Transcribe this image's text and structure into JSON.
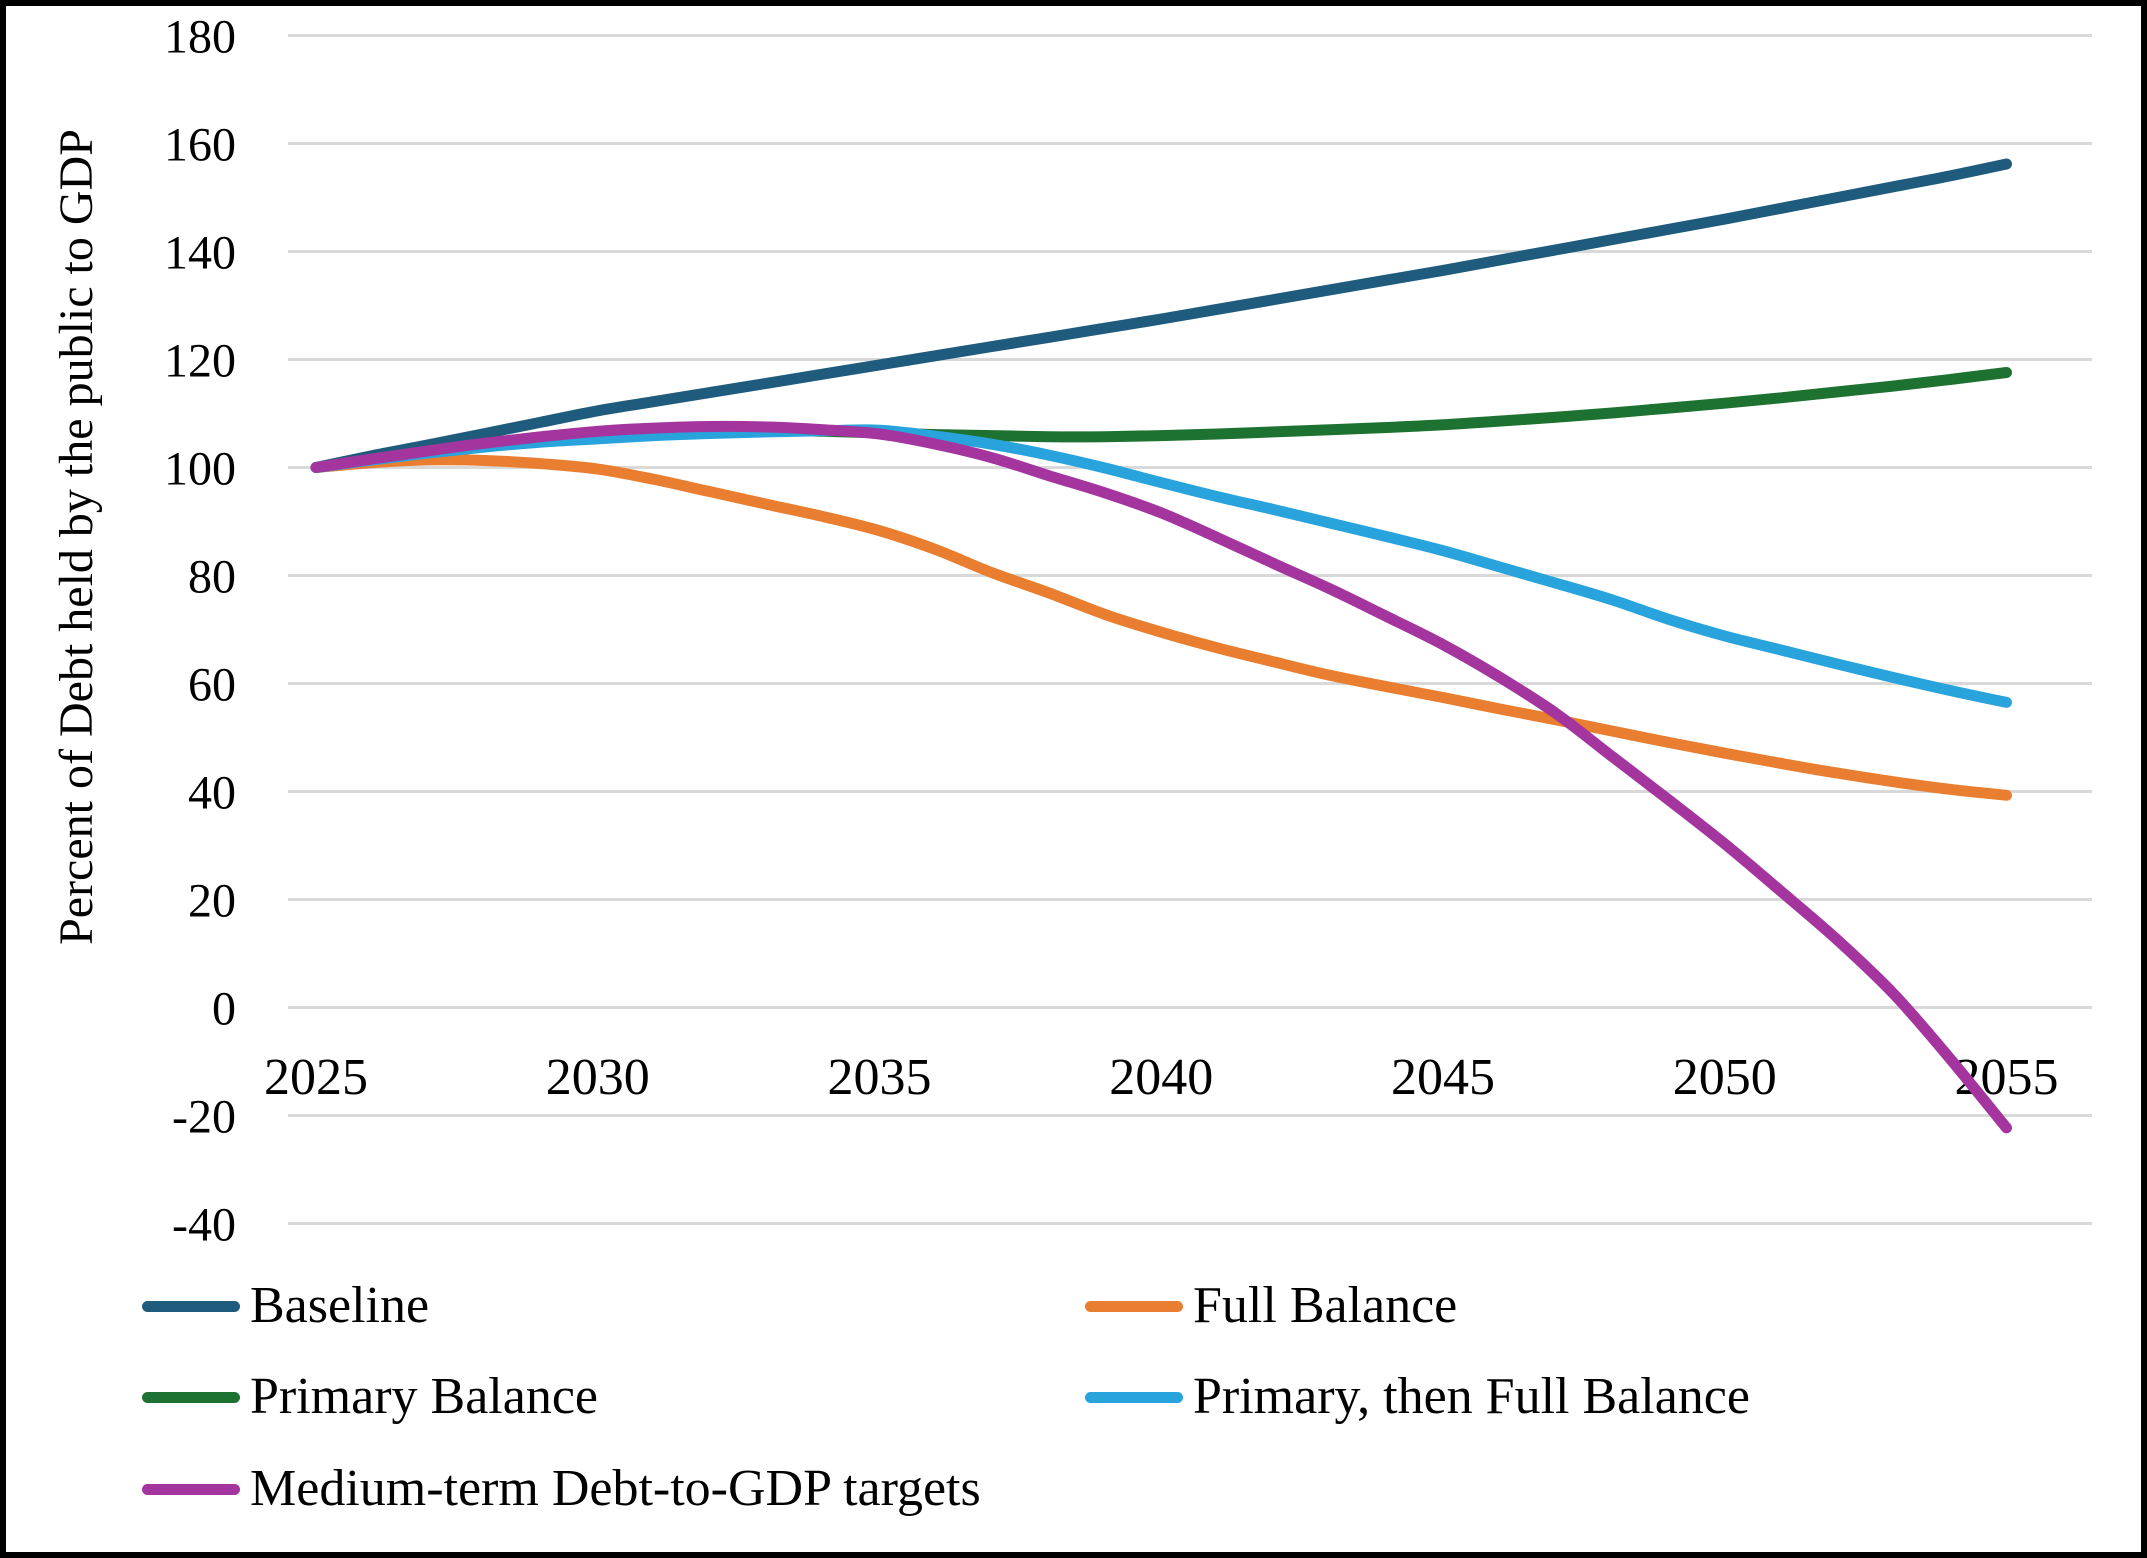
{
  "chart_data": {
    "type": "line",
    "title": "",
    "xlabel": "",
    "ylabel": "Percent of Debt held by the public to GDP",
    "x_ticks": [
      2025,
      2030,
      2035,
      2040,
      2045,
      2050,
      2055
    ],
    "y_ticks": [
      180,
      160,
      140,
      120,
      100,
      80,
      60,
      40,
      20,
      0,
      -20,
      -40
    ],
    "xlim": [
      2025,
      2055
    ],
    "ylim": [
      -40,
      180
    ],
    "grid": "horizontal",
    "gridline_color": "#d9d9d9",
    "legend_position": "bottom",
    "series": [
      {
        "name": "Baseline",
        "color": "#1f5b7c",
        "points": [
          [
            2025,
            100
          ],
          [
            2026,
            102.2
          ],
          [
            2027,
            104.2
          ],
          [
            2028,
            106.3
          ],
          [
            2029,
            108.4
          ],
          [
            2030,
            110.5
          ],
          [
            2031,
            112.2
          ],
          [
            2032,
            113.9
          ],
          [
            2033,
            115.6
          ],
          [
            2034,
            117.3
          ],
          [
            2035,
            119
          ],
          [
            2036,
            120.7
          ],
          [
            2037,
            122.4
          ],
          [
            2038,
            124.1
          ],
          [
            2039,
            125.8
          ],
          [
            2040,
            127.5
          ],
          [
            2041,
            129.3
          ],
          [
            2042,
            131.1
          ],
          [
            2043,
            132.9
          ],
          [
            2044,
            134.7
          ],
          [
            2045,
            136.5
          ],
          [
            2046,
            138.4
          ],
          [
            2047,
            140.3
          ],
          [
            2048,
            142.2
          ],
          [
            2049,
            144.1
          ],
          [
            2050,
            146
          ],
          [
            2051,
            148
          ],
          [
            2052,
            150
          ],
          [
            2053,
            152
          ],
          [
            2054,
            154
          ],
          [
            2055,
            156.2
          ]
        ]
      },
      {
        "name": "Full Balance",
        "color": "#e97e30",
        "points": [
          [
            2025,
            100
          ],
          [
            2026,
            100.9
          ],
          [
            2027,
            101.4
          ],
          [
            2028,
            101.3
          ],
          [
            2029,
            100.7
          ],
          [
            2030,
            99.7
          ],
          [
            2031,
            97.8
          ],
          [
            2032,
            95.5
          ],
          [
            2033,
            93.2
          ],
          [
            2034,
            90.9
          ],
          [
            2035,
            88.3
          ],
          [
            2036,
            84.8
          ],
          [
            2037,
            80.5
          ],
          [
            2038,
            76.8
          ],
          [
            2039,
            72.8
          ],
          [
            2040,
            69.5
          ],
          [
            2041,
            66.6
          ],
          [
            2042,
            64
          ],
          [
            2043,
            61.5
          ],
          [
            2044,
            59.4
          ],
          [
            2045,
            57.4
          ],
          [
            2046,
            55.3
          ],
          [
            2047,
            53.3
          ],
          [
            2048,
            51.2
          ],
          [
            2049,
            49.1
          ],
          [
            2050,
            47.1
          ],
          [
            2051,
            45.2
          ],
          [
            2052,
            43.4
          ],
          [
            2053,
            41.8
          ],
          [
            2054,
            40.4
          ],
          [
            2055,
            39.3
          ]
        ]
      },
      {
        "name": "Primary Balance",
        "color": "#1e7231",
        "points": [
          [
            2025,
            100
          ],
          [
            2026,
            101.5
          ],
          [
            2027,
            102.9
          ],
          [
            2028,
            104
          ],
          [
            2029,
            105
          ],
          [
            2030,
            105.8
          ],
          [
            2031,
            106.3
          ],
          [
            2032,
            106.7
          ],
          [
            2033,
            106.9
          ],
          [
            2034,
            106.7
          ],
          [
            2035,
            106.4
          ],
          [
            2036,
            106.1
          ],
          [
            2037,
            105.9
          ],
          [
            2038,
            105.7
          ],
          [
            2039,
            105.7
          ],
          [
            2040,
            105.9
          ],
          [
            2041,
            106.2
          ],
          [
            2042,
            106.6
          ],
          [
            2043,
            107
          ],
          [
            2044,
            107.4
          ],
          [
            2045,
            107.9
          ],
          [
            2046,
            108.6
          ],
          [
            2047,
            109.3
          ],
          [
            2048,
            110.1
          ],
          [
            2049,
            111
          ],
          [
            2050,
            111.9
          ],
          [
            2051,
            112.9
          ],
          [
            2052,
            114
          ],
          [
            2053,
            115.1
          ],
          [
            2054,
            116.3
          ],
          [
            2055,
            117.6
          ]
        ]
      },
      {
        "name": "Primary, then Full Balance",
        "color": "#29a3dc",
        "points": [
          [
            2025,
            100
          ],
          [
            2026,
            101.4
          ],
          [
            2027,
            102.7
          ],
          [
            2028,
            103.8
          ],
          [
            2029,
            104.7
          ],
          [
            2030,
            105.3
          ],
          [
            2031,
            105.9
          ],
          [
            2032,
            106.3
          ],
          [
            2033,
            106.6
          ],
          [
            2034,
            106.8
          ],
          [
            2035,
            106.9
          ],
          [
            2036,
            105.8
          ],
          [
            2037,
            104.3
          ],
          [
            2038,
            102.3
          ],
          [
            2039,
            99.9
          ],
          [
            2040,
            97.2
          ],
          [
            2041,
            94.6
          ],
          [
            2042,
            92.2
          ],
          [
            2043,
            89.7
          ],
          [
            2044,
            87.2
          ],
          [
            2045,
            84.6
          ],
          [
            2046,
            81.6
          ],
          [
            2047,
            78.6
          ],
          [
            2048,
            75.5
          ],
          [
            2049,
            71.9
          ],
          [
            2050,
            68.8
          ],
          [
            2051,
            66.2
          ],
          [
            2052,
            63.6
          ],
          [
            2053,
            61.1
          ],
          [
            2054,
            58.7
          ],
          [
            2055,
            56.5
          ]
        ]
      },
      {
        "name": "Medium-term Debt-to-GDP targets",
        "color": "#a4359e",
        "points": [
          [
            2025,
            100
          ],
          [
            2026,
            101.6
          ],
          [
            2027,
            103.1
          ],
          [
            2028,
            104.5
          ],
          [
            2029,
            105.7
          ],
          [
            2030,
            106.7
          ],
          [
            2031,
            107.3
          ],
          [
            2032,
            107.6
          ],
          [
            2033,
            107.5
          ],
          [
            2034,
            107
          ],
          [
            2035,
            106.2
          ],
          [
            2036,
            104.3
          ],
          [
            2037,
            101.8
          ],
          [
            2038,
            98.5
          ],
          [
            2039,
            95.3
          ],
          [
            2040,
            91.6
          ],
          [
            2041,
            87
          ],
          [
            2042,
            82.2
          ],
          [
            2043,
            77.5
          ],
          [
            2044,
            72.4
          ],
          [
            2045,
            67.2
          ],
          [
            2046,
            61.2
          ],
          [
            2047,
            54.5
          ],
          [
            2048,
            46.5
          ],
          [
            2049,
            38.5
          ],
          [
            2050,
            30.3
          ],
          [
            2051,
            21.5
          ],
          [
            2052,
            12.5
          ],
          [
            2053,
            2.5
          ],
          [
            2054,
            -9.5
          ],
          [
            2055,
            -22.3
          ]
        ]
      }
    ]
  },
  "legend": {
    "entries": [
      {
        "label": "Baseline",
        "color": "#1f5b7c"
      },
      {
        "label": "Full Balance",
        "color": "#e97e30"
      },
      {
        "label": "Primary Balance",
        "color": "#1e7231"
      },
      {
        "label": "Primary, then Full Balance",
        "color": "#29a3dc"
      },
      {
        "label": "Medium-term Debt-to-GDP targets",
        "color": "#a4359e"
      }
    ]
  }
}
